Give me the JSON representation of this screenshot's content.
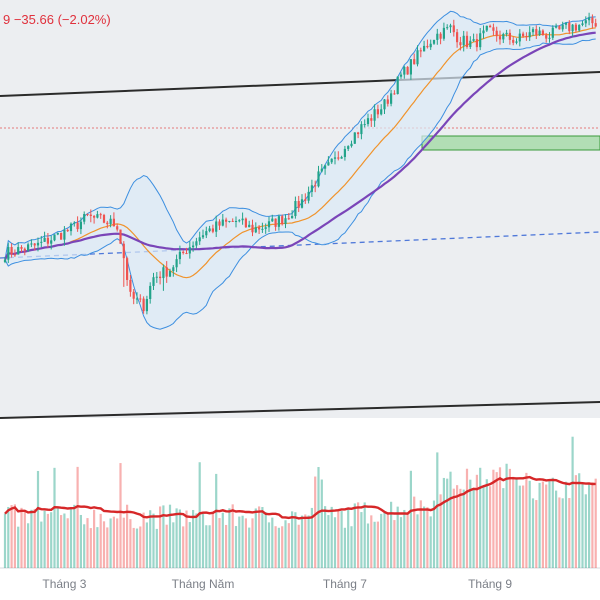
{
  "header": {
    "change_text": "9  −35.66 (−2.02%)"
  },
  "colors": {
    "up": "#22a38a",
    "down": "#ef5350",
    "bb_band": "#3d8fe0",
    "bb_fill": "#dce9f7",
    "ma_fast": "#f0932b",
    "ma_slow": "#7a45b8",
    "volume_ma": "#d62728",
    "channel": "#2b2b2b",
    "support_dashed": "#4f78d9",
    "resistance_dotted": "#e37b7b",
    "supply_zone": "#6cc96c"
  },
  "chart_data": {
    "type": "candlestick",
    "title": "",
    "x_ticks": [
      {
        "label": "Tháng 3",
        "index": 18
      },
      {
        "label": "Tháng Năm",
        "index": 60
      },
      {
        "label": "Tháng 7",
        "index": 103
      },
      {
        "label": "Tháng 9",
        "index": 147
      }
    ],
    "ylim": [
      1320,
      1840
    ],
    "volume_max": 100,
    "overlays": [
      "bollinger_bands",
      "ma_fast",
      "ma_slow",
      "price_channel",
      "support_line",
      "resistance_line",
      "supply_zone"
    ],
    "grid": false,
    "ohlc": [],
    "volume": [],
    "volume_ma": []
  }
}
